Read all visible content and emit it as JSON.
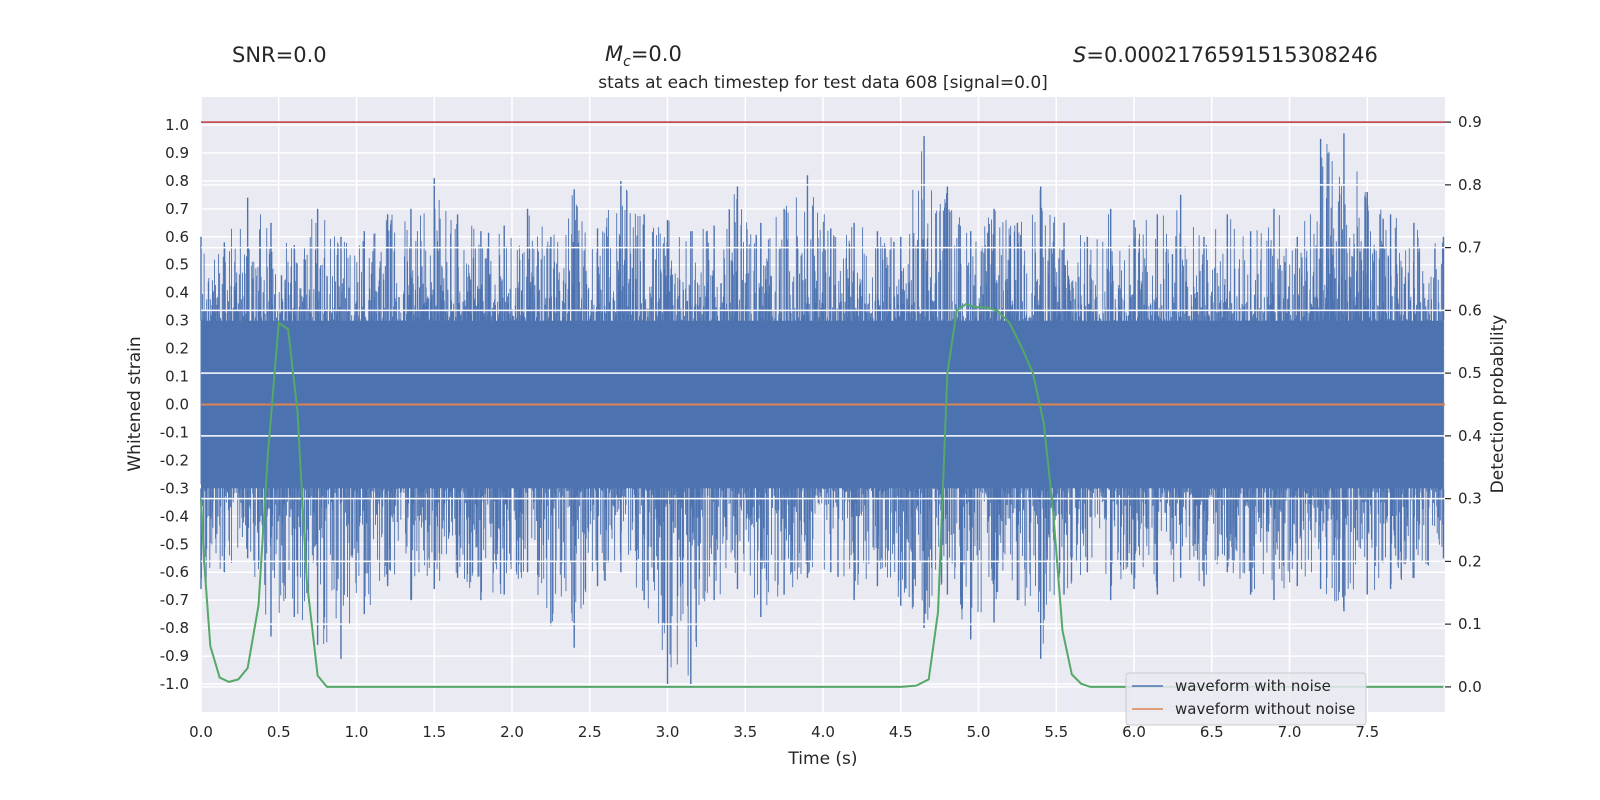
{
  "header": {
    "snr": "SNR=0.0",
    "mc_symbol": "M",
    "mc_sub": "c",
    "mc_value": "=0.0",
    "s_symbol": "S",
    "s_value": "=0.0002176591515308246"
  },
  "chart_data": {
    "type": "line",
    "title": "stats at each timestep for test data 608 [signal=0.0]",
    "xlabel": "Time (s)",
    "ylabel": "Whitened strain",
    "y2label": "Detection probability",
    "xlim": [
      0.0,
      8.0
    ],
    "ylim": [
      -1.1,
      1.1
    ],
    "y2lim": [
      -0.04,
      0.94
    ],
    "xticks": [
      "0.0",
      "0.5",
      "1.0",
      "1.5",
      "2.0",
      "2.5",
      "3.0",
      "3.5",
      "4.0",
      "4.5",
      "5.0",
      "5.5",
      "6.0",
      "6.5",
      "7.0",
      "7.5"
    ],
    "yticks": [
      "1.0",
      "0.9",
      "0.8",
      "0.7",
      "0.6",
      "0.5",
      "0.4",
      "0.3",
      "0.2",
      "0.1",
      "0.0",
      "-0.1",
      "-0.2",
      "-0.3",
      "-0.4",
      "-0.5",
      "-0.6",
      "-0.7",
      "-0.8",
      "-0.9",
      "-1.0"
    ],
    "y2ticks": [
      "0.9",
      "0.8",
      "0.7",
      "0.6",
      "0.5",
      "0.4",
      "0.3",
      "0.2",
      "0.1",
      "0.0"
    ],
    "threshold": 0.9,
    "legend_position": "bottom-right",
    "colors": {
      "noise": "#4c72b0",
      "clean": "#dd8452",
      "prob": "#55a868",
      "threshold": "#c44e52",
      "plot_bg": "#eaeaf2",
      "grid": "#ffffff"
    },
    "series": [
      {
        "name": "waveform with noise",
        "envelope": {
          "x": [
            0.0,
            0.15,
            0.3,
            0.45,
            0.6,
            0.75,
            0.9,
            1.05,
            1.2,
            1.35,
            1.5,
            1.65,
            1.8,
            1.95,
            2.1,
            2.25,
            2.4,
            2.55,
            2.7,
            2.85,
            3.0,
            3.15,
            3.3,
            3.45,
            3.6,
            3.75,
            3.9,
            4.05,
            4.2,
            4.35,
            4.5,
            4.65,
            4.8,
            4.95,
            5.1,
            5.25,
            5.4,
            5.55,
            5.7,
            5.85,
            6.0,
            6.15,
            6.3,
            6.45,
            6.6,
            6.75,
            6.9,
            7.05,
            7.2,
            7.35,
            7.5,
            7.65,
            7.8,
            7.99
          ],
          "max": [
            0.6,
            0.58,
            0.74,
            0.65,
            0.57,
            0.7,
            0.6,
            0.62,
            0.68,
            0.7,
            0.81,
            0.68,
            0.62,
            0.64,
            0.7,
            0.6,
            0.77,
            0.63,
            0.8,
            0.68,
            0.66,
            0.62,
            0.64,
            0.78,
            0.65,
            0.7,
            0.82,
            0.63,
            0.65,
            0.62,
            0.6,
            0.96,
            0.78,
            0.62,
            0.7,
            0.65,
            0.78,
            0.65,
            0.6,
            0.7,
            0.66,
            0.68,
            0.75,
            0.6,
            0.68,
            0.62,
            0.7,
            0.6,
            0.95,
            0.97,
            0.76,
            0.68,
            0.65,
            0.6
          ],
          "min": [
            -0.66,
            -0.6,
            -0.55,
            -0.83,
            -0.76,
            -0.86,
            -0.91,
            -0.75,
            -0.65,
            -0.7,
            -0.66,
            -0.62,
            -0.7,
            -0.68,
            -0.6,
            -0.79,
            -0.87,
            -0.65,
            -0.6,
            -0.7,
            -1.0,
            -1.0,
            -0.7,
            -0.66,
            -0.76,
            -0.68,
            -0.62,
            -0.6,
            -0.7,
            -0.65,
            -0.72,
            -0.8,
            -0.68,
            -0.84,
            -0.78,
            -0.7,
            -0.91,
            -0.68,
            -0.6,
            -0.7,
            -0.66,
            -0.68,
            -0.62,
            -0.65,
            -0.6,
            -0.68,
            -0.7,
            -0.65,
            -0.66,
            -0.74,
            -0.68,
            -0.66,
            -0.62,
            -0.55
          ]
        }
      },
      {
        "name": "waveform without noise",
        "x": [
          0.0,
          8.0
        ],
        "values": [
          0.0,
          0.0
        ]
      },
      {
        "name": "Detection probability",
        "x": [
          0.0,
          0.02,
          0.06,
          0.12,
          0.18,
          0.24,
          0.3,
          0.37,
          0.43,
          0.5,
          0.56,
          0.62,
          0.68,
          0.75,
          0.81,
          0.9,
          1.2,
          2.0,
          3.0,
          4.0,
          4.5,
          4.6,
          4.68,
          4.74,
          4.8,
          4.86,
          4.92,
          4.98,
          5.04,
          5.12,
          5.2,
          5.28,
          5.35,
          5.42,
          5.48,
          5.54,
          5.6,
          5.66,
          5.72,
          7.99
        ],
        "values": [
          0.3,
          0.2,
          0.065,
          0.015,
          0.008,
          0.012,
          0.03,
          0.13,
          0.37,
          0.58,
          0.57,
          0.44,
          0.17,
          0.018,
          0.0,
          0.0,
          0.0,
          0.0,
          0.0,
          0.0,
          0.0,
          0.002,
          0.012,
          0.12,
          0.5,
          0.6,
          0.61,
          0.605,
          0.605,
          0.6,
          0.58,
          0.54,
          0.5,
          0.42,
          0.28,
          0.09,
          0.02,
          0.005,
          0.0,
          0.0
        ]
      }
    ],
    "legend": [
      "waveform with noise",
      "waveform without noise"
    ]
  }
}
